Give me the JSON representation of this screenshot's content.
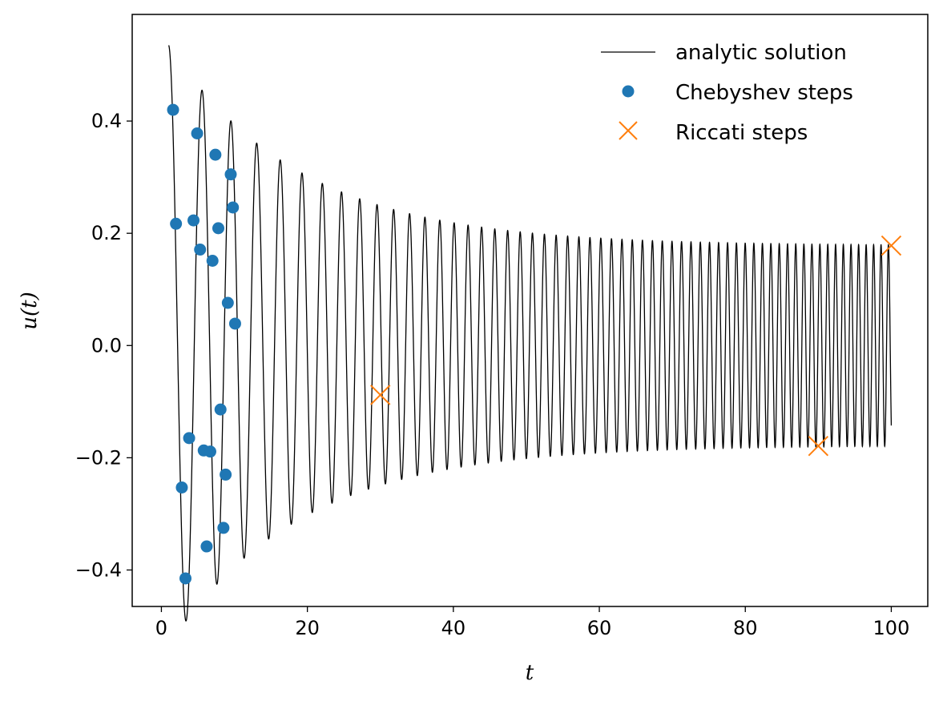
{
  "chart_data": {
    "type": "line",
    "title": "",
    "xlabel": "t",
    "ylabel": "u(t)",
    "xlim": [
      -4,
      105
    ],
    "ylim": [
      -0.465,
      0.59
    ],
    "x_ticks": [
      0,
      20,
      40,
      60,
      80,
      100
    ],
    "x_tick_labels": [
      "0",
      "20",
      "40",
      "60",
      "80",
      "100"
    ],
    "y_ticks": [
      -0.4,
      -0.2,
      0.0,
      0.2,
      0.4
    ],
    "y_tick_labels": [
      "−0.4",
      "−0.2",
      "0.0",
      "0.2",
      "0.4"
    ],
    "grid": false,
    "legend_position": "top-right",
    "colors": {
      "analytic": "#000000",
      "chebyshev": "#1f77b4",
      "riccati": "#ff7f0e"
    },
    "series": [
      {
        "name": "analytic solution",
        "style": "line",
        "t_range": [
          1,
          100
        ],
        "envelope": {
          "start_amplitude": 0.535,
          "end_amplitude": 0.178
        }
      },
      {
        "name": "Chebyshev steps",
        "style": "dot",
        "points": [
          [
            1.6,
            0.42
          ],
          [
            2.0,
            0.217
          ],
          [
            2.8,
            -0.253
          ],
          [
            3.3,
            -0.415
          ],
          [
            3.8,
            -0.165
          ],
          [
            4.4,
            0.223
          ],
          [
            4.9,
            0.378
          ],
          [
            5.3,
            0.171
          ],
          [
            5.8,
            -0.187
          ],
          [
            6.2,
            -0.358
          ],
          [
            6.7,
            -0.189
          ],
          [
            7.0,
            0.151
          ],
          [
            7.4,
            0.34
          ],
          [
            7.8,
            0.209
          ],
          [
            8.1,
            -0.114
          ],
          [
            8.5,
            -0.325
          ],
          [
            8.8,
            -0.23
          ],
          [
            9.1,
            0.076
          ],
          [
            9.5,
            0.305
          ],
          [
            9.8,
            0.246
          ],
          [
            10.1,
            0.039
          ]
        ]
      },
      {
        "name": "Riccati steps",
        "style": "x",
        "points": [
          [
            30,
            -0.088
          ],
          [
            90,
            -0.179
          ],
          [
            100,
            0.178
          ]
        ]
      }
    ]
  }
}
